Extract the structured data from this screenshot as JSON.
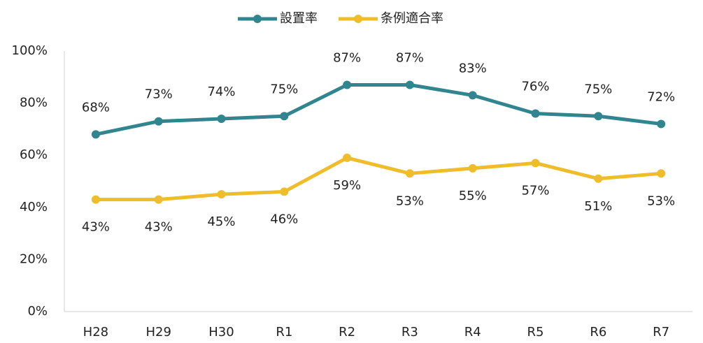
{
  "chart_data": {
    "type": "line",
    "categories": [
      "H28",
      "H29",
      "H30",
      "R1",
      "R2",
      "R3",
      "R4",
      "R5",
      "R6",
      "R7"
    ],
    "series": [
      {
        "name": "設置率",
        "color": "#31858e",
        "values": [
          68,
          73,
          74,
          75,
          87,
          87,
          83,
          76,
          75,
          72
        ],
        "value_labels": [
          "68%",
          "73%",
          "74%",
          "75%",
          "87%",
          "87%",
          "83%",
          "76%",
          "75%",
          "72%"
        ]
      },
      {
        "name": "条例適合率",
        "color": "#f0bd2a",
        "values": [
          43,
          43,
          45,
          46,
          59,
          53,
          55,
          57,
          51,
          53
        ],
        "value_labels": [
          "43%",
          "43%",
          "45%",
          "46%",
          "59%",
          "53%",
          "55%",
          "57%",
          "51%",
          "53%"
        ]
      }
    ],
    "ylim": [
      0,
      100
    ],
    "yticks": [
      {
        "value": 0,
        "label": "0%"
      },
      {
        "value": 20,
        "label": "20%"
      },
      {
        "value": 40,
        "label": "40%"
      },
      {
        "value": 60,
        "label": "60%"
      },
      {
        "value": 80,
        "label": "80%"
      },
      {
        "value": 100,
        "label": "100%"
      }
    ],
    "grid": false,
    "legend": "top"
  }
}
